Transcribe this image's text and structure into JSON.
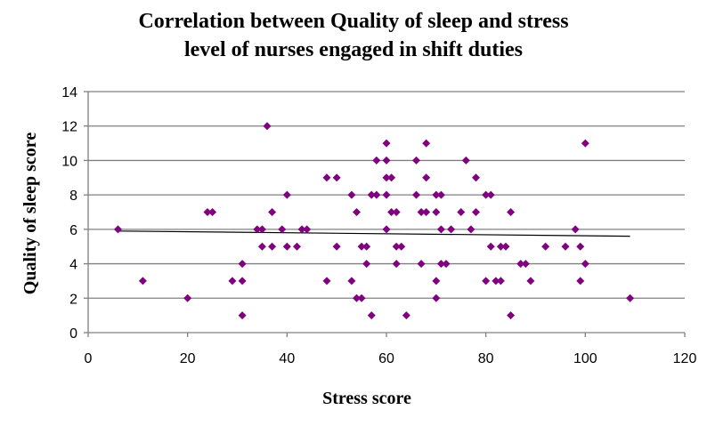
{
  "chart_data": {
    "type": "scatter",
    "title_line1": "Correlation between Quality of sleep and stress",
    "title_line2": "level of nurses engaged in shift duties",
    "xlabel": "Stress score",
    "ylabel": "Quality of sleep score",
    "xlim": [
      0,
      120
    ],
    "ylim": [
      0,
      14
    ],
    "xticks": [
      0,
      20,
      40,
      60,
      80,
      100,
      120
    ],
    "yticks": [
      0,
      2,
      4,
      6,
      8,
      10,
      12,
      14
    ],
    "grid": "horizontal",
    "legend": "none",
    "marker_color": "#800080",
    "trendline_color": "#000000",
    "trendline": {
      "x": [
        6,
        109
      ],
      "y": [
        5.9,
        5.6
      ]
    },
    "points": [
      {
        "x": 6,
        "y": 6
      },
      {
        "x": 11,
        "y": 3
      },
      {
        "x": 20,
        "y": 2
      },
      {
        "x": 24,
        "y": 7
      },
      {
        "x": 25,
        "y": 7
      },
      {
        "x": 29,
        "y": 3
      },
      {
        "x": 31,
        "y": 3
      },
      {
        "x": 31,
        "y": 4
      },
      {
        "x": 31,
        "y": 1
      },
      {
        "x": 34,
        "y": 6
      },
      {
        "x": 35,
        "y": 6
      },
      {
        "x": 35,
        "y": 5
      },
      {
        "x": 36,
        "y": 12
      },
      {
        "x": 37,
        "y": 7
      },
      {
        "x": 37,
        "y": 5
      },
      {
        "x": 39,
        "y": 6
      },
      {
        "x": 40,
        "y": 8
      },
      {
        "x": 40,
        "y": 5
      },
      {
        "x": 42,
        "y": 5
      },
      {
        "x": 43,
        "y": 6
      },
      {
        "x": 44,
        "y": 6
      },
      {
        "x": 48,
        "y": 9
      },
      {
        "x": 48,
        "y": 3
      },
      {
        "x": 50,
        "y": 9
      },
      {
        "x": 50,
        "y": 5
      },
      {
        "x": 53,
        "y": 8
      },
      {
        "x": 53,
        "y": 3
      },
      {
        "x": 54,
        "y": 7
      },
      {
        "x": 54,
        "y": 2
      },
      {
        "x": 55,
        "y": 5
      },
      {
        "x": 55,
        "y": 2
      },
      {
        "x": 56,
        "y": 5
      },
      {
        "x": 56,
        "y": 4
      },
      {
        "x": 57,
        "y": 8
      },
      {
        "x": 57,
        "y": 1
      },
      {
        "x": 58,
        "y": 10
      },
      {
        "x": 58,
        "y": 8
      },
      {
        "x": 60,
        "y": 11
      },
      {
        "x": 60,
        "y": 10
      },
      {
        "x": 60,
        "y": 9
      },
      {
        "x": 60,
        "y": 8
      },
      {
        "x": 60,
        "y": 6
      },
      {
        "x": 61,
        "y": 9
      },
      {
        "x": 61,
        "y": 7
      },
      {
        "x": 62,
        "y": 7
      },
      {
        "x": 62,
        "y": 5
      },
      {
        "x": 62,
        "y": 4
      },
      {
        "x": 63,
        "y": 5
      },
      {
        "x": 64,
        "y": 1
      },
      {
        "x": 66,
        "y": 10
      },
      {
        "x": 66,
        "y": 8
      },
      {
        "x": 67,
        "y": 7
      },
      {
        "x": 67,
        "y": 4
      },
      {
        "x": 68,
        "y": 11
      },
      {
        "x": 68,
        "y": 9
      },
      {
        "x": 68,
        "y": 7
      },
      {
        "x": 70,
        "y": 8
      },
      {
        "x": 70,
        "y": 7
      },
      {
        "x": 70,
        "y": 3
      },
      {
        "x": 70,
        "y": 2
      },
      {
        "x": 71,
        "y": 8
      },
      {
        "x": 71,
        "y": 6
      },
      {
        "x": 71,
        "y": 4
      },
      {
        "x": 72,
        "y": 4
      },
      {
        "x": 73,
        "y": 6
      },
      {
        "x": 75,
        "y": 7
      },
      {
        "x": 76,
        "y": 10
      },
      {
        "x": 77,
        "y": 6
      },
      {
        "x": 78,
        "y": 9
      },
      {
        "x": 78,
        "y": 7
      },
      {
        "x": 80,
        "y": 8
      },
      {
        "x": 80,
        "y": 3
      },
      {
        "x": 81,
        "y": 8
      },
      {
        "x": 81,
        "y": 5
      },
      {
        "x": 82,
        "y": 3
      },
      {
        "x": 83,
        "y": 5
      },
      {
        "x": 83,
        "y": 3
      },
      {
        "x": 84,
        "y": 5
      },
      {
        "x": 85,
        "y": 7
      },
      {
        "x": 85,
        "y": 1
      },
      {
        "x": 87,
        "y": 4
      },
      {
        "x": 88,
        "y": 4
      },
      {
        "x": 89,
        "y": 3
      },
      {
        "x": 92,
        "y": 5
      },
      {
        "x": 96,
        "y": 5
      },
      {
        "x": 98,
        "y": 6
      },
      {
        "x": 99,
        "y": 5
      },
      {
        "x": 99,
        "y": 3
      },
      {
        "x": 100,
        "y": 11
      },
      {
        "x": 100,
        "y": 4
      },
      {
        "x": 109,
        "y": 2
      }
    ]
  }
}
